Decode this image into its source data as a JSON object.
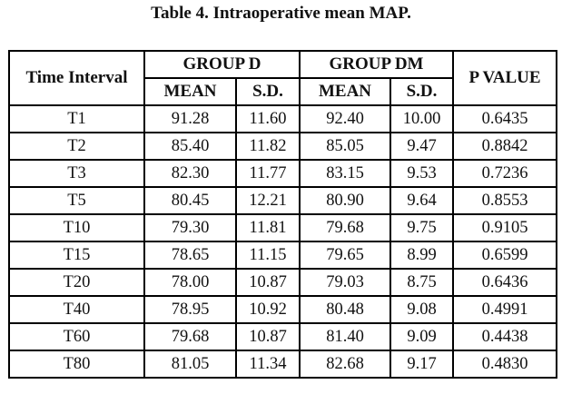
{
  "caption": "Table 4. Intraoperative mean MAP.",
  "table": {
    "headers": {
      "time_interval": "Time Interval",
      "group_d": "GROUP D",
      "group_dm": "GROUP DM",
      "p_value": "P VALUE",
      "mean_d": "MEAN",
      "sd_d": "S.D.",
      "mean_dm": "MEAN",
      "sd_dm": "S.D."
    },
    "rows": [
      {
        "time": "T1",
        "mean_d": "91.28",
        "sd_d": "11.60",
        "mean_dm": "92.40",
        "sd_dm": "10.00",
        "p": "0.6435"
      },
      {
        "time": "T2",
        "mean_d": "85.40",
        "sd_d": "11.82",
        "mean_dm": "85.05",
        "sd_dm": "9.47",
        "p": "0.8842"
      },
      {
        "time": "T3",
        "mean_d": "82.30",
        "sd_d": "11.77",
        "mean_dm": "83.15",
        "sd_dm": "9.53",
        "p": "0.7236"
      },
      {
        "time": "T5",
        "mean_d": "80.45",
        "sd_d": "12.21",
        "mean_dm": "80.90",
        "sd_dm": "9.64",
        "p": "0.8553"
      },
      {
        "time": "T10",
        "mean_d": "79.30",
        "sd_d": "11.81",
        "mean_dm": "79.68",
        "sd_dm": "9.75",
        "p": "0.9105"
      },
      {
        "time": "T15",
        "mean_d": "78.65",
        "sd_d": "11.15",
        "mean_dm": "79.65",
        "sd_dm": "8.99",
        "p": "0.6599"
      },
      {
        "time": "T20",
        "mean_d": "78.00",
        "sd_d": "10.87",
        "mean_dm": "79.03",
        "sd_dm": "8.75",
        "p": "0.6436"
      },
      {
        "time": "T40",
        "mean_d": "78.95",
        "sd_d": "10.92",
        "mean_dm": "80.48",
        "sd_dm": "9.08",
        "p": "0.4991"
      },
      {
        "time": "T60",
        "mean_d": "79.68",
        "sd_d": "10.87",
        "mean_dm": "81.40",
        "sd_dm": "9.09",
        "p": "0.4438"
      },
      {
        "time": "T80",
        "mean_d": "81.05",
        "sd_d": "11.34",
        "mean_dm": "82.68",
        "sd_dm": "9.17",
        "p": "0.4830"
      }
    ]
  }
}
